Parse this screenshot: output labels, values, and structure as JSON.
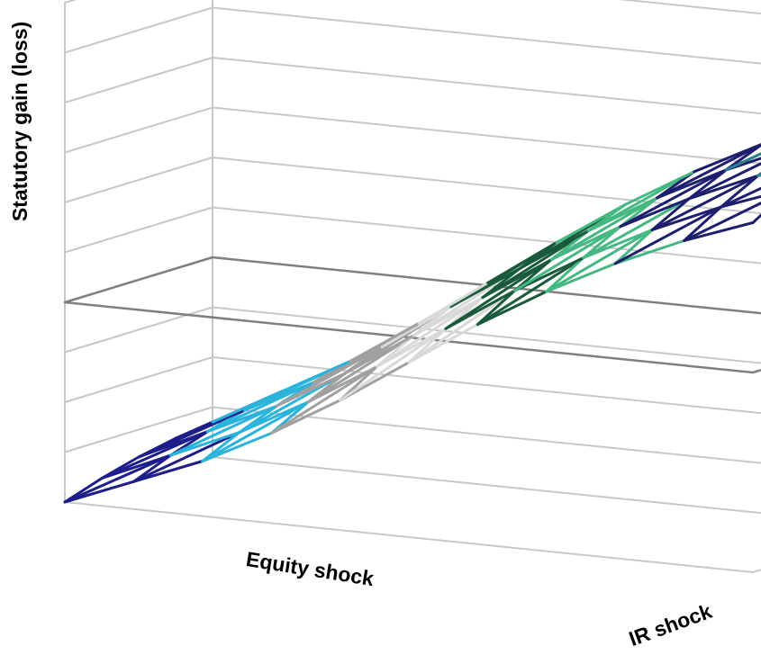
{
  "chart_data": {
    "type": "surface",
    "title": "",
    "xlabel": "Equity shock",
    "ylabel": "IR shock",
    "zlabel": "Statutory gain (loss)",
    "grid": true,
    "legend": "none",
    "baseline_level": 4,
    "levels": 10,
    "equity_steps": 10,
    "ir_steps": 4,
    "surface": [
      [
        0.0,
        0.55,
        1.1,
        1.8,
        2.6,
        3.5,
        4.4,
        5.2,
        5.9,
        6.5,
        7.0
      ],
      [
        0.25,
        0.85,
        1.45,
        2.2,
        3.05,
        3.95,
        4.85,
        5.65,
        6.35,
        6.95,
        7.45
      ],
      [
        0.45,
        1.1,
        1.75,
        2.55,
        3.45,
        4.35,
        5.25,
        6.05,
        6.75,
        7.35,
        7.85
      ],
      [
        0.6,
        1.3,
        2.0,
        2.85,
        3.8,
        4.7,
        5.6,
        6.4,
        7.1,
        7.7,
        8.2
      ],
      [
        0.7,
        1.45,
        2.2,
        3.1,
        4.05,
        5.0,
        5.9,
        6.7,
        7.4,
        8.0,
        8.5
      ]
    ],
    "band_colors": [
      "#1e1e8a",
      "#2ab4dc",
      "#a0a0a0",
      "#d9d9d9",
      "#1a5a3c",
      "#45b882",
      "#1e1e6e",
      "#2a7f8f"
    ],
    "grid_color": "#c8c8c8",
    "baseline_color": "#7f7f7f"
  }
}
